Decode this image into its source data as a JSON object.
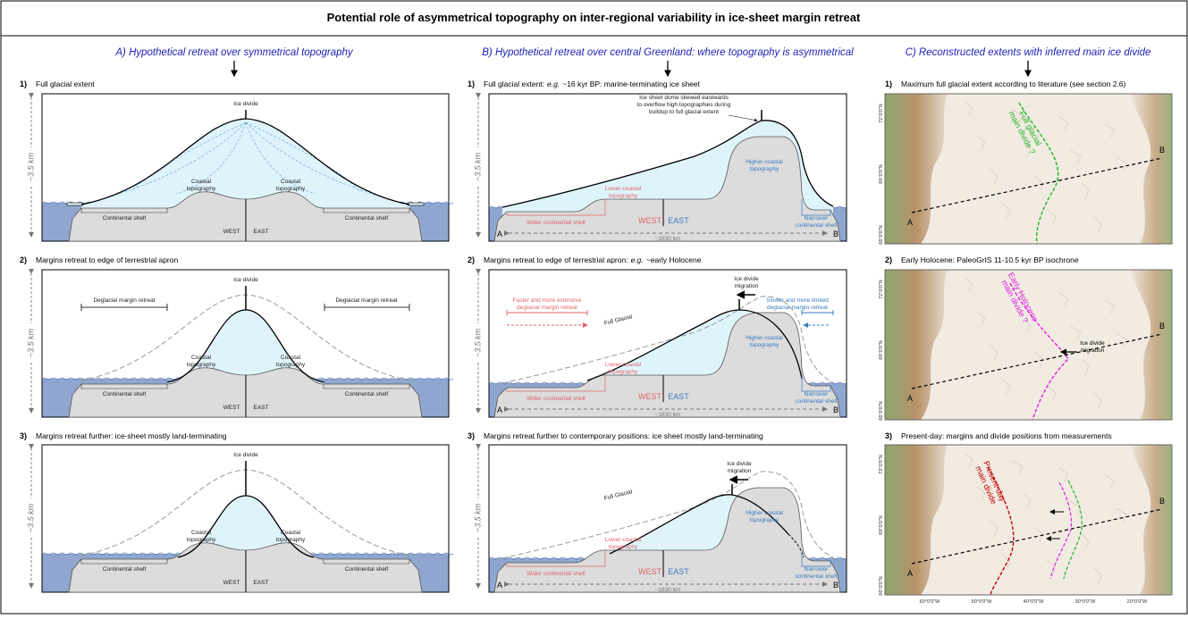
{
  "title": "Potential role of asymmetrical topography on inter-regional variability in ice-sheet margin retreat",
  "columns": [
    {
      "heading": "A) Hypothetical retreat over symmetrical topography",
      "panels": [
        {
          "number": "1)",
          "caption": [
            "Full glacial extent"
          ],
          "axis": "~3.5 km",
          "labels": {
            "divide": "Ice divide",
            "coastal_w": [
              "Coastal",
              "topography"
            ],
            "coastal_e": [
              "Coastal",
              "topography"
            ],
            "shelf_w": "Continental shelf",
            "shelf_e": "Continental shelf",
            "west": "WEST",
            "east": "EAST"
          }
        },
        {
          "number": "2)",
          "caption": [
            "Margins retreat to edge of terrestrial apron"
          ],
          "axis": "~3.5 km",
          "labels": {
            "divide": "Ice divide",
            "retreat_w": "Deglacial margin retreat",
            "retreat_e": "Deglacial margin retreat",
            "coastal_w": [
              "Coastal",
              "topography"
            ],
            "coastal_e": [
              "Coastal",
              "topography"
            ],
            "shelf_w": "Continental shelf",
            "shelf_e": "Continental shelf",
            "west": "WEST",
            "east": "EAST"
          }
        },
        {
          "number": "3)",
          "caption": [
            "Margins retreat further: ice-sheet mostly land-terminating"
          ],
          "axis": "~3.5 km",
          "labels": {
            "divide": "Ice divide",
            "coastal_w": [
              "Coastal",
              "topography"
            ],
            "coastal_e": [
              "Coastal",
              "topography"
            ],
            "shelf_w": "Continental shelf",
            "shelf_e": "Continental shelf",
            "west": "WEST",
            "east": "EAST"
          }
        }
      ]
    },
    {
      "heading": "B) Hypothetical retreat over central Greenland: where topography is asymmetrical",
      "panels": [
        {
          "number": "1)",
          "caption": [
            "Full glacial extent:",
            "e.g.",
            "~16 kyr BP: marine-terminating ice sheet"
          ],
          "axis": "~3.5 km",
          "labels": {
            "note": [
              "Ice sheet dome skewed eastwards",
              "to overflow high topographies during",
              "buildup to full glacial extent"
            ],
            "higher": [
              "Higher coastal",
              "topography"
            ],
            "lower": [
              "Lower-coastal",
              "topography"
            ],
            "wider": "Wider continental shelf",
            "narrower": [
              "Narrower",
              "continental shelf"
            ],
            "west": "WEST",
            "east": "EAST",
            "a": "A",
            "b": "B",
            "dist": "~1630 km"
          }
        },
        {
          "number": "2)",
          "caption": [
            "Margins retreat to edge of terrestrial apron:",
            "e.g.",
            "~early Holocene"
          ],
          "axis": "~3.5 km",
          "labels": {
            "migration": [
              "Ice divide",
              "migration"
            ],
            "faster": [
              "Faster and more extensive",
              "deglacial margin retreat"
            ],
            "slower": [
              "Slower and more limited",
              "deglacial margin retreat"
            ],
            "full": "Full Glacial",
            "higher": [
              "Higher coastal",
              "topography"
            ],
            "lower": [
              "Lower-coastal",
              "topography"
            ],
            "wider": "Wider continental shelf",
            "narrower": [
              "Narrower",
              "continental shelf"
            ],
            "west": "WEST",
            "east": "EAST",
            "a": "A",
            "b": "B",
            "dist": "~1630 km"
          }
        },
        {
          "number": "3)",
          "caption": [
            "Margins retreat further to contemporary positions: ice sheet mostly land-terminating"
          ],
          "axis": "~3.5 km",
          "labels": {
            "migration": [
              "Ice divide",
              "migration"
            ],
            "full": "Full Glacial",
            "higher": [
              "Higher coastal",
              "topography"
            ],
            "lower": [
              "Lower-coastal",
              "topography"
            ],
            "wider": "Wider continental shelf",
            "narrower": [
              "Narrower",
              "continental shelf"
            ],
            "west": "WEST",
            "east": "EAST",
            "a": "A",
            "b": "B",
            "dist": "~1630 km"
          }
        }
      ]
    },
    {
      "heading": "C) Reconstructed extents with inferred main ice divide",
      "panels": [
        {
          "number": "1)",
          "caption": [
            "Maximum full glacial extent according to literature (see section 2.6)"
          ],
          "labels": {
            "divide_full": [
              "Full glacial",
              "main divide ?"
            ],
            "a": "A",
            "b": "B"
          },
          "lat": [
            "72°0'0\"N",
            "69°0'0\"N",
            "66°0'0\"N"
          ]
        },
        {
          "number": "2)",
          "caption": [
            "Early Holocene: PaleoGrIS 11-10.5 kyr BP isochrone"
          ],
          "labels": {
            "divide_early": [
              "Early Holocene",
              "main divide ?"
            ],
            "migration": [
              "Ice divide",
              "migration"
            ],
            "a": "A",
            "b": "B"
          },
          "lat": [
            "72°0'0\"N",
            "69°0'0\"N",
            "66°0'0\"N"
          ]
        },
        {
          "number": "3)",
          "caption": [
            "Present-day: margins and divide positions from measurements"
          ],
          "labels": {
            "divide_present": [
              "Present-day",
              "main divide"
            ],
            "a": "A",
            "b": "B"
          },
          "lat": [
            "72°0'0\"N",
            "69°0'0\"N",
            "66°0'0\"N"
          ],
          "lon": [
            "60°0'0\"W",
            "50°0'0\"W",
            "40°0'0\"W",
            "30°0'0\"W",
            "20°0'0\"W"
          ]
        }
      ]
    }
  ]
}
